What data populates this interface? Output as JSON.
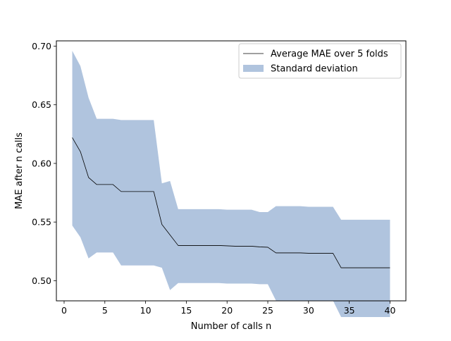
{
  "chart_data": {
    "type": "line",
    "title": "",
    "xlabel": "Number of calls n",
    "ylabel": "MAE after n calls",
    "xlim": [
      -0.95,
      41.95
    ],
    "ylim": [
      0.4828,
      0.7045
    ],
    "xticks": [
      0,
      5,
      10,
      15,
      20,
      25,
      30,
      35,
      40
    ],
    "yticks": [
      0.5,
      0.55,
      0.6,
      0.65,
      0.7
    ],
    "xtick_labels": [
      "0",
      "5",
      "10",
      "15",
      "20",
      "25",
      "30",
      "35",
      "40"
    ],
    "ytick_labels": [
      "0.50",
      "0.55",
      "0.60",
      "0.65",
      "0.70"
    ],
    "grid": false,
    "legend_position": "top-right",
    "x": [
      1,
      2,
      3,
      4,
      5,
      6,
      7,
      8,
      9,
      10,
      11,
      12,
      13,
      14,
      15,
      16,
      17,
      18,
      19,
      20,
      21,
      22,
      23,
      24,
      25,
      26,
      27,
      28,
      29,
      30,
      31,
      32,
      33,
      34,
      35,
      36,
      37,
      38,
      39,
      40
    ],
    "series": [
      {
        "name": "Average MAE over 5 folds",
        "kind": "line",
        "color": "#000000",
        "values": [
          0.622,
          0.61,
          0.588,
          0.582,
          0.582,
          0.582,
          0.576,
          0.576,
          0.576,
          0.576,
          0.576,
          0.548,
          0.539,
          0.53,
          0.53,
          0.53,
          0.53,
          0.53,
          0.53,
          0.5297,
          0.5294,
          0.5294,
          0.5294,
          0.5288,
          0.5285,
          0.5237,
          0.5237,
          0.5237,
          0.5237,
          0.5234,
          0.5234,
          0.5234,
          0.5234,
          0.511,
          0.511,
          0.511,
          0.511,
          0.511,
          0.511,
          0.511
        ]
      },
      {
        "name": "Standard deviation",
        "kind": "band",
        "color": "#b0c4de",
        "upper": [
          0.696,
          0.683,
          0.656,
          0.638,
          0.638,
          0.638,
          0.637,
          0.637,
          0.637,
          0.637,
          0.637,
          0.583,
          0.585,
          0.561,
          0.561,
          0.561,
          0.561,
          0.561,
          0.561,
          0.5605,
          0.5605,
          0.5605,
          0.5605,
          0.5585,
          0.5585,
          0.5635,
          0.5635,
          0.5635,
          0.5635,
          0.563,
          0.563,
          0.563,
          0.563,
          0.552,
          0.552,
          0.552,
          0.552,
          0.552,
          0.552,
          0.552
        ],
        "lower": [
          0.547,
          0.537,
          0.519,
          0.524,
          0.524,
          0.524,
          0.513,
          0.513,
          0.513,
          0.513,
          0.513,
          0.511,
          0.492,
          0.498,
          0.498,
          0.498,
          0.498,
          0.498,
          0.498,
          0.4975,
          0.4975,
          0.4975,
          0.4975,
          0.497,
          0.497,
          0.483,
          0.483,
          0.483,
          0.483,
          0.483,
          0.483,
          0.483,
          0.483,
          0.469,
          0.469,
          0.469,
          0.469,
          0.469,
          0.469,
          0.469
        ]
      }
    ]
  }
}
